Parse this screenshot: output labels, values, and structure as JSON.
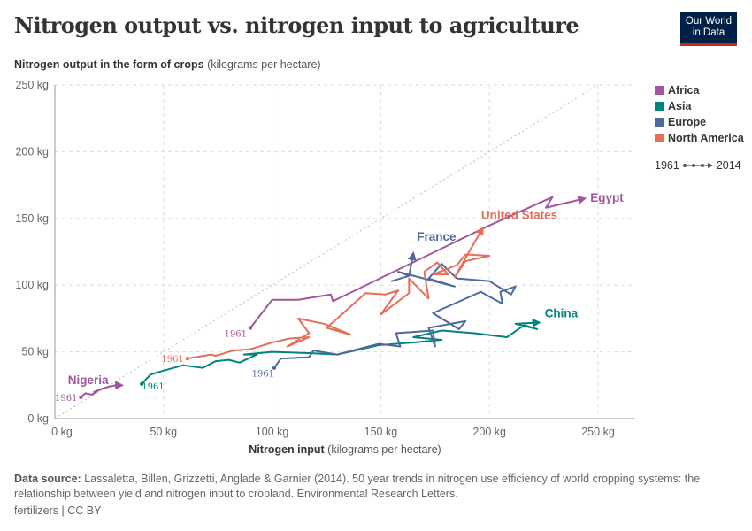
{
  "title": "Nitrogen output vs. nitrogen input to agriculture",
  "logo": "Our World in Data",
  "source_label": "Data source:",
  "source_text": "Lassaletta, Billen, Grizzetti, Anglade & Garnier (2014). 50 year trends in nitrogen use efficiency of world cropping systems: the relationship between yield and nitrogen input to cropland. Environmental Research Letters.",
  "license": "fertilizers | CC BY",
  "timeline": {
    "start": "1961",
    "end": "2014"
  },
  "chart_data": {
    "type": "scatter",
    "connected": true,
    "xlabel_main": "Nitrogen input",
    "xlabel_unit": "(kilograms per hectare)",
    "ylabel_main": "Nitrogen output in the form of crops",
    "ylabel_unit": "(kilograms per hectare)",
    "xlim": [
      0,
      250
    ],
    "ylim": [
      0,
      250
    ],
    "xticks": [
      "0 kg",
      "50 kg",
      "100 kg",
      "150 kg",
      "200 kg",
      "250 kg"
    ],
    "yticks": [
      "0 kg",
      "50 kg",
      "100 kg",
      "150 kg",
      "200 kg",
      "250 kg"
    ],
    "grid": true,
    "reference_line": "y = x",
    "legend_position": "right",
    "legend": [
      {
        "name": "Africa",
        "color": "#a2559c"
      },
      {
        "name": "Asia",
        "color": "#00847e"
      },
      {
        "name": "Europe",
        "color": "#4c6a9c"
      },
      {
        "name": "North America",
        "color": "#e56e5a"
      }
    ],
    "series": [
      {
        "name": "Egypt",
        "region": "Africa",
        "color": "#a2559c",
        "start_label": "1961",
        "points": [
          [
            90,
            68
          ],
          [
            100,
            89
          ],
          [
            112,
            89
          ],
          [
            127,
            93
          ],
          [
            128,
            88
          ],
          [
            199,
            144
          ],
          [
            229,
            166
          ],
          [
            226,
            158
          ],
          [
            244,
            165
          ]
        ]
      },
      {
        "name": "Nigeria",
        "region": "Africa",
        "color": "#a2559c",
        "start_label": "1961",
        "points": [
          [
            12,
            16
          ],
          [
            14,
            19
          ],
          [
            17,
            18
          ],
          [
            20,
            21
          ],
          [
            18,
            20
          ],
          [
            23,
            23
          ],
          [
            21,
            22
          ],
          [
            25,
            24
          ],
          [
            28,
            25
          ],
          [
            31,
            25
          ]
        ]
      },
      {
        "name": "China",
        "region": "Asia",
        "color": "#00847e",
        "start_label": "1961",
        "points": [
          [
            40,
            26
          ],
          [
            44,
            33
          ],
          [
            48,
            35
          ],
          [
            59,
            40
          ],
          [
            68,
            38
          ],
          [
            74,
            43
          ],
          [
            80,
            44
          ],
          [
            85,
            42
          ],
          [
            93,
            48
          ],
          [
            87,
            48
          ],
          [
            100,
            50
          ],
          [
            118,
            49
          ],
          [
            130,
            48
          ],
          [
            149,
            55
          ],
          [
            165,
            57
          ],
          [
            178,
            59
          ],
          [
            165,
            61
          ],
          [
            178,
            66
          ],
          [
            193,
            64
          ],
          [
            208,
            61
          ],
          [
            216,
            70
          ],
          [
            222,
            67
          ],
          [
            212,
            71
          ],
          [
            223,
            72
          ]
        ]
      },
      {
        "name": "France",
        "region": "Europe",
        "color": "#4c6a9c",
        "start_label": "1961",
        "points": [
          [
            101,
            38
          ],
          [
            104,
            45
          ],
          [
            117,
            46
          ],
          [
            119,
            51
          ],
          [
            130,
            48
          ],
          [
            149,
            56
          ],
          [
            159,
            54
          ],
          [
            157,
            64
          ],
          [
            174,
            66
          ],
          [
            175,
            54
          ],
          [
            172,
            68
          ],
          [
            189,
            73
          ],
          [
            186,
            67
          ],
          [
            174,
            79
          ],
          [
            196,
            95
          ],
          [
            206,
            86
          ],
          [
            205,
            95
          ],
          [
            212,
            99
          ],
          [
            210,
            93
          ],
          [
            200,
            103
          ],
          [
            185,
            105
          ],
          [
            178,
            116
          ],
          [
            172,
            105
          ],
          [
            184,
            99
          ],
          [
            158,
            110
          ],
          [
            163,
            107
          ],
          [
            155,
            103
          ],
          [
            163,
            107
          ],
          [
            165,
            124
          ]
        ]
      },
      {
        "name": "United States",
        "region": "North America",
        "color": "#e56e5a",
        "start_label": "1961",
        "points": [
          [
            61,
            45
          ],
          [
            72,
            48
          ],
          [
            74,
            47
          ],
          [
            82,
            51
          ],
          [
            90,
            52
          ],
          [
            100,
            57
          ],
          [
            108,
            60
          ],
          [
            117,
            61
          ],
          [
            107,
            54
          ],
          [
            117,
            64
          ],
          [
            112,
            75
          ],
          [
            124,
            71
          ],
          [
            136,
            63
          ],
          [
            125,
            68
          ],
          [
            130,
            75
          ],
          [
            143,
            94
          ],
          [
            152,
            93
          ],
          [
            158,
            96
          ],
          [
            150,
            78
          ],
          [
            163,
            94
          ],
          [
            163,
            105
          ],
          [
            172,
            90
          ],
          [
            170,
            110
          ],
          [
            176,
            117
          ],
          [
            181,
            108
          ],
          [
            174,
            108
          ],
          [
            185,
            115
          ],
          [
            189,
            123
          ],
          [
            200,
            122
          ],
          [
            189,
            118
          ],
          [
            184,
            106
          ],
          [
            197,
            143
          ]
        ]
      }
    ]
  }
}
